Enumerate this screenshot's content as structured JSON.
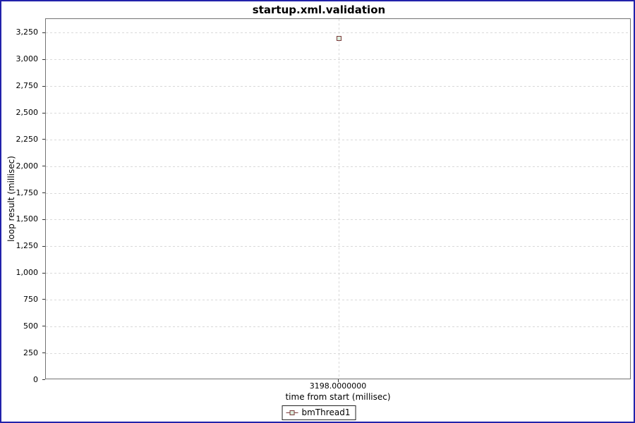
{
  "window": {
    "border_color": "#2222aa",
    "background": "#ffffff"
  },
  "chart_data": {
    "type": "scatter",
    "title": "startup.xml.validation",
    "xlabel": "time from start (millisec)",
    "ylabel": "loop result (millisec)",
    "x_ticks": [
      {
        "value": 3198,
        "label": "3198.0000000"
      }
    ],
    "y_ticks": [
      {
        "value": 0,
        "label": "0"
      },
      {
        "value": 250,
        "label": "250"
      },
      {
        "value": 500,
        "label": "500"
      },
      {
        "value": 750,
        "label": "750"
      },
      {
        "value": 1000,
        "label": "1,000"
      },
      {
        "value": 1250,
        "label": "1,250"
      },
      {
        "value": 1500,
        "label": "1,500"
      },
      {
        "value": 1750,
        "label": "1,750"
      },
      {
        "value": 2000,
        "label": "2,000"
      },
      {
        "value": 2250,
        "label": "2,250"
      },
      {
        "value": 2500,
        "label": "2,500"
      },
      {
        "value": 2750,
        "label": "2,750"
      },
      {
        "value": 3000,
        "label": "3,000"
      },
      {
        "value": 3250,
        "label": "3,250"
      }
    ],
    "ylim": [
      0,
      3382
    ],
    "grid": "dashed",
    "legend_position": "bottom-center",
    "series": [
      {
        "name": "bmThread1",
        "marker": "square",
        "marker_border_color": "#7a3a3a",
        "marker_fill_color": "#ddeede",
        "points": [
          {
            "x": 3198,
            "y": 3198
          }
        ]
      }
    ]
  },
  "colors": {
    "plot_border": "#737373",
    "gridline": "#d9d9d9",
    "tick": "#333333",
    "text": "#000000"
  }
}
